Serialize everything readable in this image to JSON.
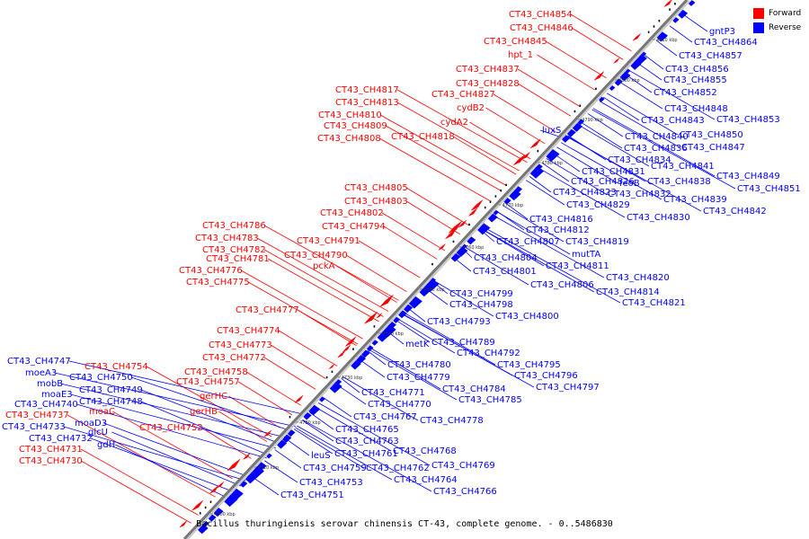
{
  "legend": {
    "forward_label": "Forward",
    "reverse_label": "Reverse",
    "forward_color": "#ff0000",
    "reverse_color": "#0000ff"
  },
  "caption": "Bacillus thuringiensis serovar chinensis CT-43, complete genome. - 0..5486830",
  "ticks": [
    {
      "label": "4700 kbp"
    },
    {
      "label": "4710 kbp"
    },
    {
      "label": "4720 kbp"
    },
    {
      "label": "4730 kbp"
    },
    {
      "label": "4740 kbp"
    },
    {
      "label": "4750 kbp"
    },
    {
      "label": "4760 kbp"
    },
    {
      "label": "4770 kbp"
    },
    {
      "label": "4780 kbp"
    },
    {
      "label": "4790 kbp"
    },
    {
      "label": "4800 kbp"
    },
    {
      "label": "4810 kbp"
    }
  ],
  "forward_labels": [
    {
      "name": "CT43_CH4854"
    },
    {
      "name": "CT43_CH4846"
    },
    {
      "name": "CT43_CH4845"
    },
    {
      "name": "hpt_1"
    },
    {
      "name": "CT43_CH4837"
    },
    {
      "name": "CT43_CH4828"
    },
    {
      "name": "CT43_CH4827"
    },
    {
      "name": "cydB2"
    },
    {
      "name": "cydA2"
    },
    {
      "name": "CT43_CH4817"
    },
    {
      "name": "CT43_CH4813"
    },
    {
      "name": "CT43_CH4810"
    },
    {
      "name": "CT43_CH4809"
    },
    {
      "name": "CT43_CH4818"
    },
    {
      "name": "CT43_CH4808"
    },
    {
      "name": "CT43_CH4805"
    },
    {
      "name": "CT43_CH4803"
    },
    {
      "name": "CT43_CH4802"
    },
    {
      "name": "CT43_CH4794"
    },
    {
      "name": "CT43_CH4786"
    },
    {
      "name": "CT43_CH4783"
    },
    {
      "name": "CT43_CH4791"
    },
    {
      "name": "CT43_CH4782"
    },
    {
      "name": "CT43_CH4790"
    },
    {
      "name": "CT43_CH4781"
    },
    {
      "name": "pckA"
    },
    {
      "name": "CT43_CH4776"
    },
    {
      "name": "CT43_CH4775"
    },
    {
      "name": "CT43_CH4777"
    },
    {
      "name": "CT43_CH4774"
    },
    {
      "name": "CT43_CH4773"
    },
    {
      "name": "CT43_CH4772"
    },
    {
      "name": "CT43_CH4754"
    },
    {
      "name": "CT43_CH4758"
    },
    {
      "name": "CT43_CH4757"
    },
    {
      "name": "gerHC"
    },
    {
      "name": "gerHB"
    },
    {
      "name": "moaC"
    },
    {
      "name": "CT43_CH4737"
    },
    {
      "name": "CT43_CH4752"
    },
    {
      "name": "CT43_CH4731"
    },
    {
      "name": "CT43_CH4730"
    }
  ],
  "reverse_labels": [
    {
      "name": "gntP3"
    },
    {
      "name": "CT43_CH4864"
    },
    {
      "name": "CT43_CH4857"
    },
    {
      "name": "CT43_CH4856"
    },
    {
      "name": "CT43_CH4855"
    },
    {
      "name": "CT43_CH4852"
    },
    {
      "name": "CT43_CH4848"
    },
    {
      "name": "CT43_CH4843"
    },
    {
      "name": "CT43_CH4853"
    },
    {
      "name": "CT43_CH4840"
    },
    {
      "name": "CT43_CH4850"
    },
    {
      "name": "CT43_CH4836"
    },
    {
      "name": "CT43_CH4847"
    },
    {
      "name": "luxS"
    },
    {
      "name": "CT43_CH4834"
    },
    {
      "name": "CT43_CH4841"
    },
    {
      "name": "CT43_CH4831"
    },
    {
      "name": "CT43_CH4826"
    },
    {
      "name": "feoB"
    },
    {
      "name": "CT43_CH4838"
    },
    {
      "name": "CT43_CH4849"
    },
    {
      "name": "CT43_CH4823"
    },
    {
      "name": "CT43_CH4832"
    },
    {
      "name": "CT43_CH4851"
    },
    {
      "name": "CT43_CH4829"
    },
    {
      "name": "CT43_CH4839"
    },
    {
      "name": "CT43_CH4842"
    },
    {
      "name": "CT43_CH4816"
    },
    {
      "name": "CT43_CH4830"
    },
    {
      "name": "CT43_CH4812"
    },
    {
      "name": "CT43_CH4807"
    },
    {
      "name": "CT43_CH4819"
    },
    {
      "name": "CT43_CH4804"
    },
    {
      "name": "mutTA"
    },
    {
      "name": "CT43_CH4801"
    },
    {
      "name": "CT43_CH4811"
    },
    {
      "name": "CT43_CH4820"
    },
    {
      "name": "CT43_CH4806"
    },
    {
      "name": "CT43_CH4814"
    },
    {
      "name": "CT43_CH4799"
    },
    {
      "name": "CT43_CH4821"
    },
    {
      "name": "CT43_CH4798"
    },
    {
      "name": "CT43_CH4800"
    },
    {
      "name": "CT43_CH4793"
    },
    {
      "name": "metK"
    },
    {
      "name": "CT43_CH4789"
    },
    {
      "name": "CT43_CH4792"
    },
    {
      "name": "CT43_CH4795"
    },
    {
      "name": "CT43_CH4780"
    },
    {
      "name": "CT43_CH4796"
    },
    {
      "name": "CT43_CH4779"
    },
    {
      "name": "CT43_CH4797"
    },
    {
      "name": "CT43_CH4784"
    },
    {
      "name": "CT43_CH4771"
    },
    {
      "name": "CT43_CH4785"
    },
    {
      "name": "CT43_CH4770"
    },
    {
      "name": "CT43_CH4767"
    },
    {
      "name": "CT43_CH4778"
    },
    {
      "name": "CT43_CH4765"
    },
    {
      "name": "CT43_CH4763"
    },
    {
      "name": "CT43_CH4768"
    },
    {
      "name": "leuS"
    },
    {
      "name": "CT43_CH4761"
    },
    {
      "name": "CT43_CH4769"
    },
    {
      "name": "CT43_CH4759"
    },
    {
      "name": "CT43_CH4762"
    },
    {
      "name": "CT43_CH4753"
    },
    {
      "name": "CT43_CH4764"
    },
    {
      "name": "CT43_CH4751"
    },
    {
      "name": "CT43_CH4766"
    },
    {
      "name": "CT43_CH4747"
    },
    {
      "name": "moeA3"
    },
    {
      "name": "CT43_CH4750"
    },
    {
      "name": "mobB"
    },
    {
      "name": "CT43_CH4749"
    },
    {
      "name": "moaE3"
    },
    {
      "name": "CT43_CH4748"
    },
    {
      "name": "CT43_CH4740"
    },
    {
      "name": "moaD3"
    },
    {
      "name": "CT43_CH4733"
    },
    {
      "name": "glcU"
    },
    {
      "name": "CT43_CH4732"
    },
    {
      "name": "gdH"
    }
  ]
}
